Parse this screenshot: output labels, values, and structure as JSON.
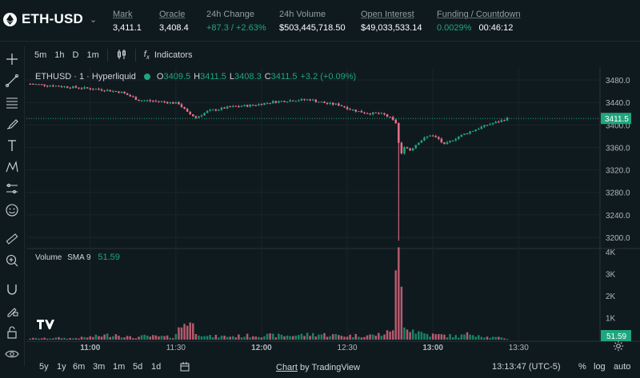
{
  "header": {
    "pair": "ETH-USD",
    "stats": [
      {
        "label": "Mark",
        "value": "3,411.1",
        "underline": true
      },
      {
        "label": "Oracle",
        "value": "3,408.4",
        "underline": true
      },
      {
        "label": "24h Change",
        "value": "+87.3 / +2.63%",
        "underline": false,
        "positive": true
      },
      {
        "label": "24h Volume",
        "value": "$503,445,718.50",
        "underline": false
      },
      {
        "label": "Open Interest",
        "value": "$49,033,533.14",
        "underline": true
      },
      {
        "label": "Funding / Countdown",
        "value": "0.0029%",
        "value2": "00:46:12",
        "underline": true
      }
    ]
  },
  "toolbar": {
    "intervals": [
      "5m",
      "1h",
      "D",
      "1m"
    ],
    "indicators_label": "Indicators"
  },
  "legend": {
    "symbol": "ETHUSD · 1 · Hyperliquid",
    "o_label": "O",
    "o": "3409.5",
    "h_label": "H",
    "h": "3411.5",
    "l_label": "L",
    "l": "3408.3",
    "c_label": "C",
    "c": "3411.5",
    "change": "+3.2 (+0.09%)"
  },
  "volume_legend": {
    "name": "Volume",
    "sma": "SMA 9",
    "value": "51.59"
  },
  "bottom": {
    "ranges": [
      "5y",
      "1y",
      "6m",
      "3m",
      "1m",
      "5d",
      "1d"
    ],
    "credit_link": "Chart",
    "credit_rest": " by TradingView",
    "clock": "13:13:47 (UTC-5)",
    "percent": "%",
    "log": "log",
    "auto": "auto"
  },
  "colors": {
    "up": "#1fa67d",
    "down": "#ed7088",
    "background": "#0f1a1f",
    "price_tag": "#1fa67d"
  },
  "chart_data": {
    "type": "candlestick",
    "title": "ETHUSD · 1 · Hyperliquid",
    "price_axis": {
      "ticks": [
        3480,
        3440,
        3400,
        3360,
        3320,
        3280,
        3240,
        3200
      ],
      "labels": [
        "3480.0",
        "3440.0",
        "3400.0",
        "3360.0",
        "3320.0",
        "3280.0",
        "3240.0",
        "3200.0"
      ],
      "range": [
        3180,
        3500
      ],
      "last_price": "3411.5"
    },
    "volume_axis": {
      "ticks": [
        1000,
        2000,
        3000,
        4000
      ],
      "labels": [
        "1K",
        "2K",
        "3K",
        "4K"
      ],
      "range": [
        0,
        4000
      ],
      "last_volume": "51.59"
    },
    "time_axis": {
      "labels": [
        "11:00",
        "11:30",
        "12:00",
        "12:30",
        "13:00",
        "13:30"
      ],
      "start": "10:39",
      "last_candle": "13:13"
    },
    "close_path": [
      [
        0,
        3473
      ],
      [
        15,
        3467
      ],
      [
        25,
        3463
      ],
      [
        32,
        3458
      ],
      [
        38,
        3444
      ],
      [
        45,
        3442
      ],
      [
        52,
        3438
      ],
      [
        55,
        3422
      ],
      [
        58,
        3413
      ],
      [
        62,
        3424
      ],
      [
        70,
        3432
      ],
      [
        78,
        3435
      ],
      [
        85,
        3441
      ],
      [
        92,
        3444
      ],
      [
        98,
        3445
      ],
      [
        104,
        3438
      ],
      [
        108,
        3436
      ],
      [
        112,
        3428
      ],
      [
        115,
        3424
      ],
      [
        118,
        3421
      ],
      [
        122,
        3420
      ],
      [
        124,
        3418
      ],
      [
        126,
        3412
      ],
      [
        128,
        3404
      ],
      [
        129,
        3368
      ],
      [
        130,
        3348
      ],
      [
        131,
        3362
      ],
      [
        133,
        3355
      ],
      [
        136,
        3370
      ],
      [
        140,
        3382
      ],
      [
        143,
        3375
      ],
      [
        145,
        3364
      ],
      [
        148,
        3374
      ],
      [
        152,
        3384
      ],
      [
        156,
        3392
      ],
      [
        160,
        3400
      ],
      [
        164,
        3406
      ],
      [
        167,
        3411.5
      ]
    ],
    "spike": {
      "minute": 129,
      "low": 3194
    },
    "volume_path": [
      [
        0,
        60
      ],
      [
        5,
        60
      ],
      [
        10,
        80
      ],
      [
        15,
        60
      ],
      [
        20,
        110
      ],
      [
        30,
        250
      ],
      [
        36,
        80
      ],
      [
        40,
        160
      ],
      [
        50,
        120
      ],
      [
        55,
        950
      ],
      [
        58,
        420
      ],
      [
        62,
        150
      ],
      [
        70,
        150
      ],
      [
        80,
        200
      ],
      [
        90,
        180
      ],
      [
        100,
        250
      ],
      [
        110,
        180
      ],
      [
        120,
        200
      ],
      [
        125,
        300
      ],
      [
        127,
        600
      ],
      [
        129,
        4200
      ],
      [
        130,
        2200
      ],
      [
        131,
        900
      ],
      [
        133,
        520
      ],
      [
        136,
        350
      ],
      [
        140,
        220
      ],
      [
        145,
        200
      ],
      [
        150,
        150
      ],
      [
        155,
        300
      ],
      [
        160,
        120
      ],
      [
        165,
        80
      ],
      [
        167,
        52
      ]
    ]
  }
}
